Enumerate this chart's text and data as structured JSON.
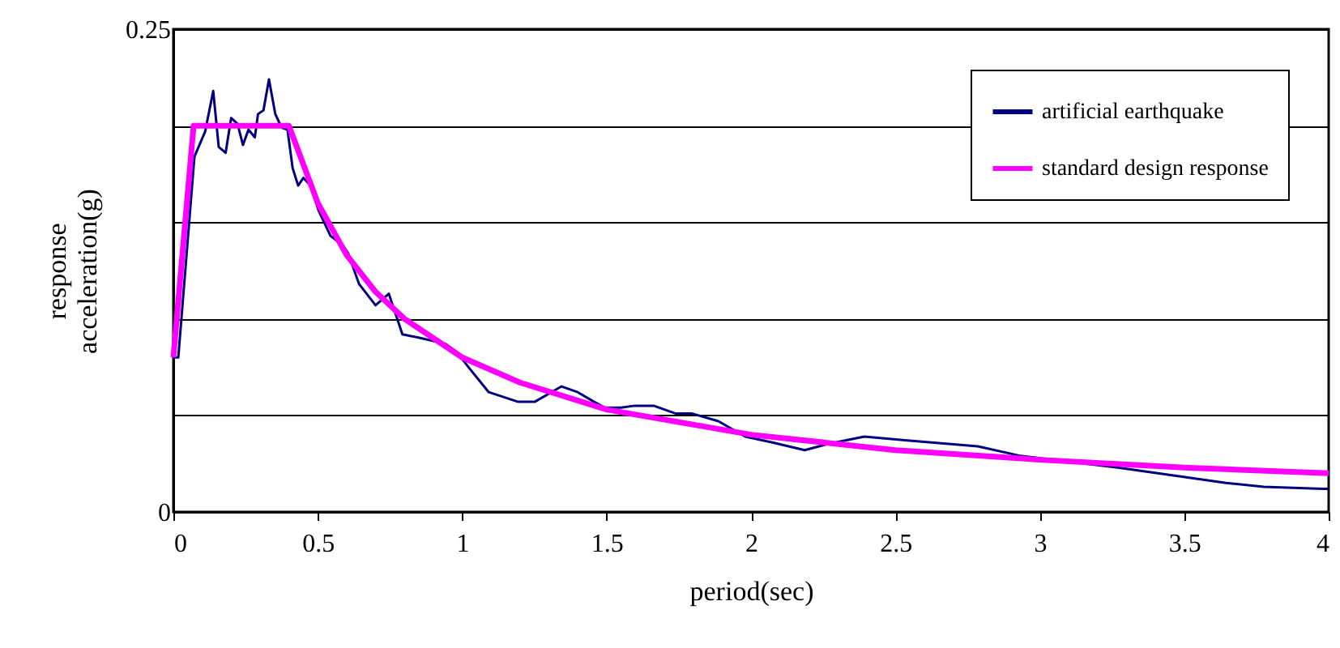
{
  "chart_data": {
    "type": "line",
    "xlabel": "period(sec)",
    "ylabel": "response acceleration(g)",
    "xlim": [
      0,
      4
    ],
    "xticks": [
      0,
      0.5,
      1,
      1.5,
      2,
      2.5,
      3,
      3.5,
      4
    ],
    "ylim": [
      0,
      0.25
    ],
    "yticks": [
      0,
      {
        "value": 0.05,
        "label": null
      },
      {
        "value": 0.1,
        "label": null
      },
      {
        "value": 0.15,
        "label": null
      },
      {
        "value": 0.2,
        "label": null
      },
      0.25
    ],
    "grid": "y",
    "legend": "top right",
    "marker": "none",
    "line_style": "solid",
    "series": [
      {
        "name": "artificial earthquake",
        "color": "#000080",
        "x": [
          0,
          0.017,
          0.073,
          0.11,
          0.138,
          0.157,
          0.181,
          0.2,
          0.222,
          0.241,
          0.26,
          0.282,
          0.293,
          0.312,
          0.331,
          0.353,
          0.375,
          0.395,
          0.413,
          0.432,
          0.45,
          0.475,
          0.503,
          0.544,
          0.587,
          0.605,
          0.643,
          0.7,
          0.746,
          0.793,
          0.858,
          0.943,
          0.98,
          1.027,
          1.092,
          1.194,
          1.251,
          1.344,
          1.4,
          1.457,
          1.494,
          1.55,
          1.597,
          1.663,
          1.738,
          1.794,
          1.887,
          1.98,
          2.074,
          2.186,
          2.261,
          2.392,
          2.541,
          2.785,
          2.934,
          3.27,
          3.458,
          3.645,
          3.775,
          3.98,
          4
        ],
        "values": [
          0.08,
          0.08,
          0.184,
          0.197,
          0.218,
          0.189,
          0.186,
          0.204,
          0.201,
          0.19,
          0.198,
          0.194,
          0.206,
          0.208,
          0.224,
          0.206,
          0.199,
          0.198,
          0.178,
          0.169,
          0.173,
          0.169,
          0.156,
          0.143,
          0.138,
          0.134,
          0.118,
          0.107,
          0.113,
          0.092,
          0.09,
          0.087,
          0.083,
          0.074,
          0.062,
          0.057,
          0.057,
          0.065,
          0.062,
          0.057,
          0.054,
          0.054,
          0.055,
          0.055,
          0.051,
          0.051,
          0.047,
          0.039,
          0.036,
          0.032,
          0.035,
          0.039,
          0.037,
          0.034,
          0.029,
          0.023,
          0.019,
          0.015,
          0.013,
          0.012,
          0.012
        ]
      },
      {
        "name": "standard design response",
        "color": "#ff00ff",
        "x": [
          0,
          0.07,
          0.4,
          0.5,
          0.6,
          0.7,
          0.8,
          1,
          1.2,
          1.5,
          2,
          2.5,
          3,
          3.5,
          4
        ],
        "values": [
          0.08,
          0.2,
          0.2,
          0.16,
          0.133,
          0.114,
          0.1,
          0.08,
          0.067,
          0.053,
          0.04,
          0.032,
          0.027,
          0.023,
          0.02
        ]
      }
    ]
  }
}
